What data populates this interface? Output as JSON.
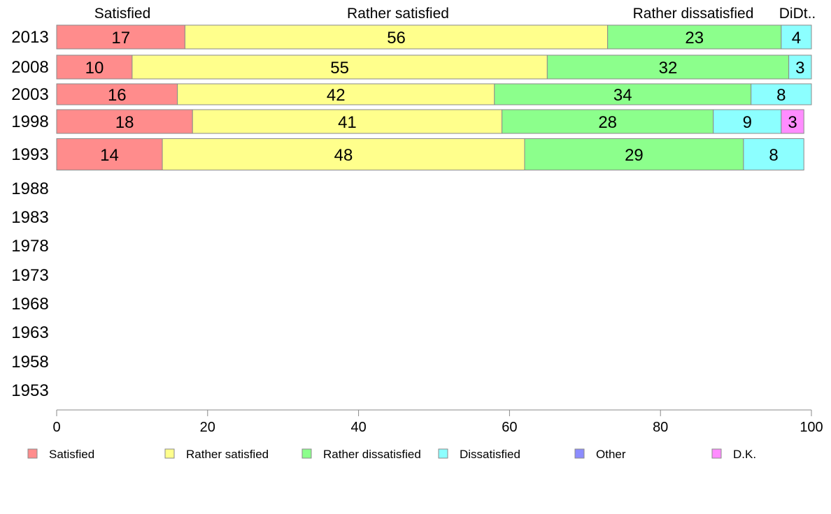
{
  "chart_data": {
    "type": "bar",
    "orientation": "horizontal",
    "stacked": true,
    "top_labels": [
      "Satisfied",
      "Rather satisfied",
      "Rather dissatisfied",
      "DiDt.."
    ],
    "categories": [
      "2013",
      "2008",
      "2003",
      "1998",
      "1993",
      "1988",
      "1983",
      "1978",
      "1973",
      "1968",
      "1963",
      "1958",
      "1953"
    ],
    "series": [
      {
        "name": "Satisfied",
        "color": "#ff8c8c",
        "values": [
          17,
          10,
          16,
          18,
          14,
          null,
          null,
          null,
          null,
          null,
          null,
          null,
          null
        ]
      },
      {
        "name": "Rather satisfied",
        "color": "#ffff8c",
        "values": [
          56,
          55,
          42,
          41,
          48,
          null,
          null,
          null,
          null,
          null,
          null,
          null,
          null
        ]
      },
      {
        "name": "Rather dissatisfied",
        "color": "#8cff8c",
        "values": [
          23,
          32,
          34,
          28,
          29,
          null,
          null,
          null,
          null,
          null,
          null,
          null,
          null
        ]
      },
      {
        "name": "Dissatisfied",
        "color": "#8cffff",
        "values": [
          4,
          3,
          8,
          9,
          8,
          null,
          null,
          null,
          null,
          null,
          null,
          null,
          null
        ]
      },
      {
        "name": "Other",
        "color": "#8c8cff",
        "values": [
          0,
          0,
          0,
          0,
          0,
          null,
          null,
          null,
          null,
          null,
          null,
          null,
          null
        ]
      },
      {
        "name": "D.K.",
        "color": "#ff8cff",
        "values": [
          0,
          0,
          0,
          3,
          0,
          null,
          null,
          null,
          null,
          null,
          null,
          null,
          null
        ]
      }
    ],
    "xlim": [
      0,
      100
    ],
    "xticks": [
      "0",
      "20",
      "40",
      "60",
      "80",
      "100"
    ],
    "legend": [
      "Satisfied",
      "Rather satisfied",
      "Rather dissatisfied",
      "Dissatisfied",
      "Other",
      "D.K."
    ],
    "legend_position": "bottom"
  }
}
